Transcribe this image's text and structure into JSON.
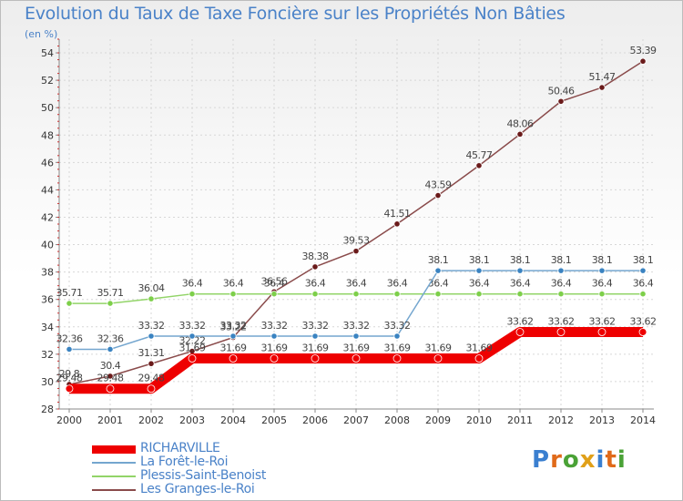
{
  "title": "Evolution du Taux de Taxe Foncière sur les Propriétés Non Bâties",
  "subtitle": "(en %)",
  "logo": {
    "letters": [
      "P",
      "r",
      "o",
      "x",
      "i",
      "t",
      "i"
    ],
    "colors": [
      "#3a7fd0",
      "#e06a1a",
      "#4aa236",
      "#e0a019",
      "#3a7fd0",
      "#e06a1a",
      "#4aa236"
    ]
  },
  "chart_data": {
    "type": "line",
    "title": "Evolution du Taux de Taxe Foncière sur les Propriétés Non Bâties",
    "ylabel": "(en %)",
    "xlabel": "",
    "ylim": [
      28,
      55
    ],
    "yticks": [
      28,
      30,
      32,
      34,
      36,
      38,
      40,
      42,
      44,
      46,
      48,
      50,
      52,
      54
    ],
    "x": [
      "2000",
      "2001",
      "2002",
      "2003",
      "2004",
      "2005",
      "2006",
      "2007",
      "2008",
      "2009",
      "2010",
      "2011",
      "2012",
      "2013",
      "2014"
    ],
    "series": [
      {
        "name": "RICHARVILLE",
        "color": "#ee0000",
        "marker": "#ee0000",
        "values": [
          29.48,
          29.48,
          29.48,
          31.69,
          31.69,
          31.69,
          31.69,
          31.69,
          31.69,
          31.69,
          31.69,
          33.62,
          33.62,
          33.62,
          33.62
        ],
        "labels": [
          "29.48",
          "29.48",
          "29.48",
          "31.69",
          "31.69",
          "31.69",
          "31.69",
          "31.69",
          "31.69",
          "31.69",
          "31.69",
          "33.62",
          "33.62",
          "33.62",
          "33.62"
        ]
      },
      {
        "name": "La Forêt-le-Roi",
        "color": "#74a6cf",
        "marker": "#3a83c1",
        "values": [
          32.36,
          32.36,
          33.32,
          33.32,
          33.32,
          33.32,
          33.32,
          33.32,
          33.32,
          38.1,
          38.1,
          38.1,
          38.1,
          38.1,
          38.1
        ],
        "labels": [
          "32.36",
          "32.36",
          "33.32",
          "33.32",
          "33.32",
          "33.32",
          "33.32",
          "33.32",
          "33.32",
          "38.1",
          "38.1",
          "38.1",
          "38.1",
          "38.1",
          "38.1"
        ]
      },
      {
        "name": "Plessis-Saint-Benoist",
        "color": "#92d468",
        "marker": "#7dcf4a",
        "values": [
          35.71,
          35.71,
          36.04,
          36.4,
          36.4,
          36.4,
          36.4,
          36.4,
          36.4,
          36.4,
          36.4,
          36.4,
          36.4,
          36.4,
          36.4
        ],
        "labels": [
          "35.71",
          "35.71",
          "36.04",
          "36.4",
          "36.4",
          "36.4",
          "36.4",
          "36.4",
          "36.4",
          "36.4",
          "36.4",
          "36.4",
          "36.4",
          "36.4",
          "36.4"
        ]
      },
      {
        "name": "Les Granges-le-Roi",
        "color": "#8a4b4b",
        "marker": "#6a1a1a",
        "values": [
          29.8,
          30.4,
          31.31,
          32.22,
          33.22,
          36.56,
          38.38,
          39.53,
          41.51,
          43.59,
          45.77,
          48.06,
          50.46,
          51.47,
          53.39
        ],
        "labels": [
          "29.8",
          "30.4",
          "31.31",
          "32.22",
          "33.22",
          "36.56",
          "38.38",
          "39.53",
          "41.51",
          "43.59",
          "45.77",
          "48.06",
          "50.46",
          "51.47",
          "53.39"
        ]
      }
    ],
    "legend_position": "bottom-left"
  }
}
